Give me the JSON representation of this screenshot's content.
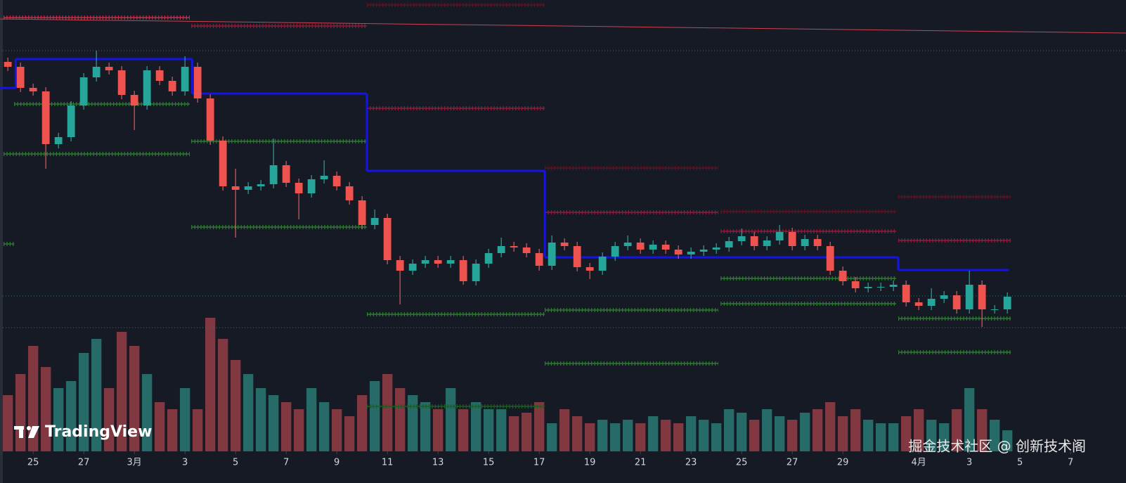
{
  "chart_data": {
    "type": "candlestick",
    "up_color": "#26a69a",
    "down_color": "#ef5350",
    "volume_up_color": "#2b7f78",
    "volume_down_color": "#9c4048",
    "xlim": [
      54.69,
      99.19
    ],
    "ylim": [
      8,
      650
    ],
    "volume_lim": [
      0,
      642
    ],
    "xticks": [
      {
        "value": 56,
        "label": "25"
      },
      {
        "value": 58,
        "label": "27"
      },
      {
        "value": 60,
        "label": "3月"
      },
      {
        "value": 62,
        "label": "3"
      },
      {
        "value": 64,
        "label": "5"
      },
      {
        "value": 66,
        "label": "7"
      },
      {
        "value": 68,
        "label": "9"
      },
      {
        "value": 70,
        "label": "11"
      },
      {
        "value": 72,
        "label": "13"
      },
      {
        "value": 74,
        "label": "15"
      },
      {
        "value": 76,
        "label": "17"
      },
      {
        "value": 78,
        "label": "19"
      },
      {
        "value": 80,
        "label": "21"
      },
      {
        "value": 82,
        "label": "23"
      },
      {
        "value": 84,
        "label": "25"
      },
      {
        "value": 86,
        "label": "27"
      },
      {
        "value": 88,
        "label": "29"
      },
      {
        "value": 91,
        "label": "4月"
      },
      {
        "value": 93,
        "label": "3"
      },
      {
        "value": 95,
        "label": "5"
      },
      {
        "value": 97,
        "label": "7"
      }
    ],
    "x": [
      55,
      55.5,
      56,
      56.5,
      57,
      57.5,
      58,
      58.5,
      59,
      59.5,
      60,
      60.5,
      61,
      61.5,
      62,
      62.5,
      63,
      63.5,
      64,
      64.5,
      65,
      65.5,
      66,
      66.5,
      67,
      67.5,
      68,
      68.5,
      69,
      69.5,
      70,
      70.5,
      71,
      71.5,
      72,
      72.5,
      73,
      73.5,
      74,
      74.5,
      75,
      75.5,
      76,
      76.5,
      77,
      77.5,
      78,
      78.5,
      79,
      79.5,
      80,
      80.5,
      81,
      81.5,
      82,
      82.5,
      83,
      83.5,
      84,
      84.5,
      85,
      85.5,
      86,
      86.5,
      87,
      87.5,
      88,
      88.5,
      89,
      89.5,
      90,
      90.5,
      91,
      91.5,
      92,
      92.5,
      93,
      93.5,
      94,
      94.5
    ],
    "open": [
      562,
      555,
      525,
      520,
      445,
      455,
      500,
      540,
      555,
      550,
      515,
      500,
      550,
      535,
      520,
      555,
      510,
      450,
      385,
      380,
      385,
      388,
      415,
      390,
      375,
      395,
      400,
      385,
      365,
      330,
      340,
      280,
      265,
      275,
      280,
      275,
      280,
      250,
      275,
      290,
      300,
      298,
      290,
      272,
      305,
      300,
      270,
      265,
      285,
      300,
      305,
      295,
      302,
      295,
      288,
      292,
      295,
      298,
      307,
      314,
      300,
      308,
      320,
      300,
      310,
      300,
      265,
      250,
      240,
      242,
      242,
      245,
      220,
      215,
      225,
      230,
      210,
      245,
      210,
      210
    ],
    "high": [
      568,
      561,
      531,
      526,
      461,
      506,
      546,
      578,
      561,
      556,
      521,
      556,
      556,
      541,
      570,
      561,
      516,
      456,
      410,
      391,
      394,
      453,
      421,
      396,
      401,
      422,
      406,
      391,
      371,
      352,
      346,
      286,
      281,
      286,
      286,
      286,
      286,
      281,
      296,
      312,
      306,
      304,
      296,
      315,
      311,
      306,
      276,
      291,
      306,
      315,
      311,
      308,
      308,
      301,
      298,
      301,
      304,
      313,
      325,
      320,
      314,
      330,
      326,
      316,
      316,
      306,
      271,
      256,
      248,
      248,
      251,
      251,
      226,
      240,
      236,
      236,
      265,
      251,
      216,
      234
    ],
    "low": [
      549,
      519,
      514,
      410,
      439,
      449,
      494,
      534,
      544,
      509,
      465,
      494,
      529,
      514,
      514,
      504,
      444,
      379,
      312,
      374,
      379,
      382,
      384,
      338,
      369,
      389,
      379,
      359,
      324,
      324,
      274,
      217,
      259,
      269,
      269,
      269,
      245,
      244,
      269,
      284,
      292,
      284,
      265,
      266,
      294,
      264,
      253,
      259,
      279,
      294,
      289,
      289,
      289,
      282,
      282,
      286,
      289,
      292,
      301,
      294,
      294,
      302,
      294,
      294,
      294,
      259,
      244,
      234,
      234,
      236,
      236,
      214,
      209,
      209,
      219,
      204,
      204,
      185,
      204,
      204
    ],
    "close": [
      555,
      525,
      520,
      445,
      455,
      500,
      540,
      555,
      550,
      515,
      500,
      550,
      535,
      520,
      555,
      510,
      450,
      385,
      380,
      385,
      388,
      415,
      390,
      375,
      395,
      400,
      385,
      365,
      330,
      340,
      280,
      265,
      275,
      280,
      275,
      280,
      250,
      275,
      290,
      300,
      298,
      290,
      272,
      305,
      300,
      270,
      265,
      285,
      300,
      305,
      295,
      302,
      295,
      288,
      292,
      295,
      298,
      307,
      314,
      300,
      308,
      320,
      300,
      310,
      300,
      265,
      250,
      240,
      242,
      242,
      245,
      220,
      215,
      225,
      230,
      210,
      245,
      210,
      210,
      228
    ],
    "volume": [
      80,
      110,
      150,
      120,
      90,
      100,
      140,
      160,
      90,
      170,
      150,
      110,
      70,
      60,
      90,
      60,
      190,
      160,
      130,
      110,
      90,
      80,
      70,
      60,
      90,
      70,
      60,
      50,
      80,
      100,
      110,
      90,
      80,
      70,
      60,
      90,
      60,
      70,
      60,
      60,
      50,
      55,
      70,
      40,
      60,
      50,
      40,
      45,
      40,
      45,
      40,
      50,
      45,
      40,
      50,
      45,
      40,
      60,
      55,
      45,
      60,
      50,
      45,
      55,
      60,
      70,
      50,
      60,
      45,
      40,
      40,
      50,
      60,
      45,
      40,
      60,
      90,
      60,
      45,
      30
    ],
    "step": {
      "color": "#1414e6",
      "from": [
        54.69,
        55.31,
        62.28,
        69.19,
        76.22,
        90.19
      ],
      "to": [
        55.31,
        62.28,
        69.19,
        76.22,
        90.19,
        94.56
      ],
      "values": [
        525,
        566,
        517,
        407,
        284,
        266
      ]
    },
    "levels": {
      "values": [
        625,
        613,
        643,
        496,
        411,
        348,
        349,
        321,
        370,
        308,
        502,
        431,
        303,
        449,
        327,
        203,
        72,
        209,
        133,
        254,
        218,
        197,
        149
      ],
      "from": [
        54.83,
        62.25,
        69.19,
        69.19,
        76.22,
        76.22,
        83.17,
        83.17,
        90.19,
        90.19,
        55.25,
        54.83,
        54.83,
        62.25,
        62.25,
        69.19,
        69.19,
        76.22,
        76.22,
        83.17,
        83.17,
        90.19,
        90.19
      ],
      "to": [
        62.19,
        69.19,
        76.22,
        76.22,
        83.08,
        83.08,
        90.11,
        90.11,
        94.64,
        94.64,
        62.19,
        62.19,
        55.25,
        69.19,
        69.19,
        76.22,
        76.22,
        83.08,
        83.08,
        90.11,
        90.11,
        94.64,
        94.64
      ],
      "colors": [
        "#c0304a",
        "#8b1e3a",
        "#5a1422",
        "#8b1e3a",
        "#5a1422",
        "#8b1e3a",
        "#5a1422",
        "#8b1e3a",
        "#5a1422",
        "#8b1e3a",
        "#2e7d32",
        "#2e7d32",
        "#2e7d32",
        "#2e7d32",
        "#2e7d32",
        "#2e7d32",
        "#1b5e20",
        "#2e7d32",
        "#2e7d32",
        "#2e7d32",
        "#2e7d32",
        "#2e7d32",
        "#2e7d32"
      ]
    },
    "trendline": {
      "color": "#d04050",
      "x": [
        54.69,
        99.19
      ],
      "values": [
        623,
        603
      ]
    },
    "hlines": {
      "values": [
        578,
        184,
        229
      ],
      "colors": [
        "#5d606b",
        "#5d606b",
        "#1f6f66"
      ]
    },
    "watermark": "TradingView",
    "credit": "掘金技术社区 @ 创新技术阁"
  }
}
